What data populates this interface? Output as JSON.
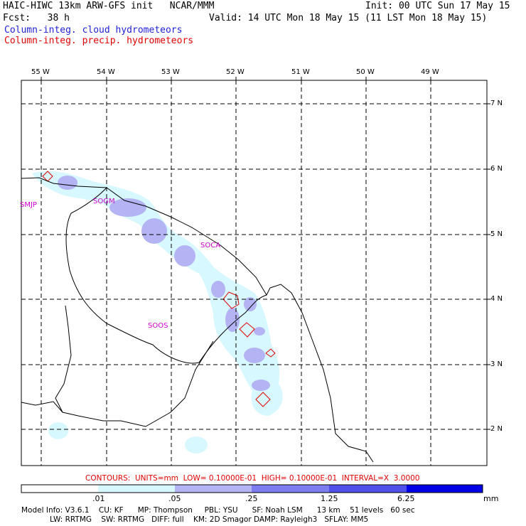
{
  "header": {
    "title_left": "HAIC-HIWC 13km ARW-GFS init   NCAR/MMM",
    "init": "Init: 00 UTC Sun 17 May 15",
    "fcst": "Fcst:   38 h",
    "valid": "Valid: 14 UTC Mon 18 May 15 (11 LST Mon 18 May 15)",
    "line_blue": "Column-integ. cloud hydrometeors",
    "line_red": "Column-integ. precip. hydrometeors"
  },
  "map": {
    "lon_labels": [
      "55 W",
      "54 W",
      "53 W",
      "52 W",
      "51 W",
      "50 W",
      "49 W"
    ],
    "lat_labels": [
      "7 N",
      "6 N",
      "5 N",
      "4 N",
      "3 N",
      "2 N"
    ],
    "stations": [
      "SMJP",
      "SOGM",
      "SOCA",
      "SOOS"
    ]
  },
  "contours_note": "CONTOURS:  UNITS=mm  LOW= 0.10000E-01  HIGH= 0.10000E-01  INTERVAL=X  3.0000",
  "legend": {
    "ticks": [
      ".01",
      ".05",
      ".25",
      "1.25",
      "6.25"
    ],
    "units": "mm",
    "colors": [
      "#ffffff",
      "#d8f8ff",
      "#b4b4f4",
      "#7d7df0",
      "#5050ea",
      "#0000e6"
    ]
  },
  "footer": {
    "line1": "Model Info: V3.6.1    CU: KF      MP: Thompson     PBL: YSU      SF: Noah LSM      13 km    51 levels   60 sec",
    "line2": "            LW: RRTMG    SW: RRTMG   DIFF: full    KM: 2D Smagor DAMP: Rayleigh3   SFLAY: MM5"
  }
}
